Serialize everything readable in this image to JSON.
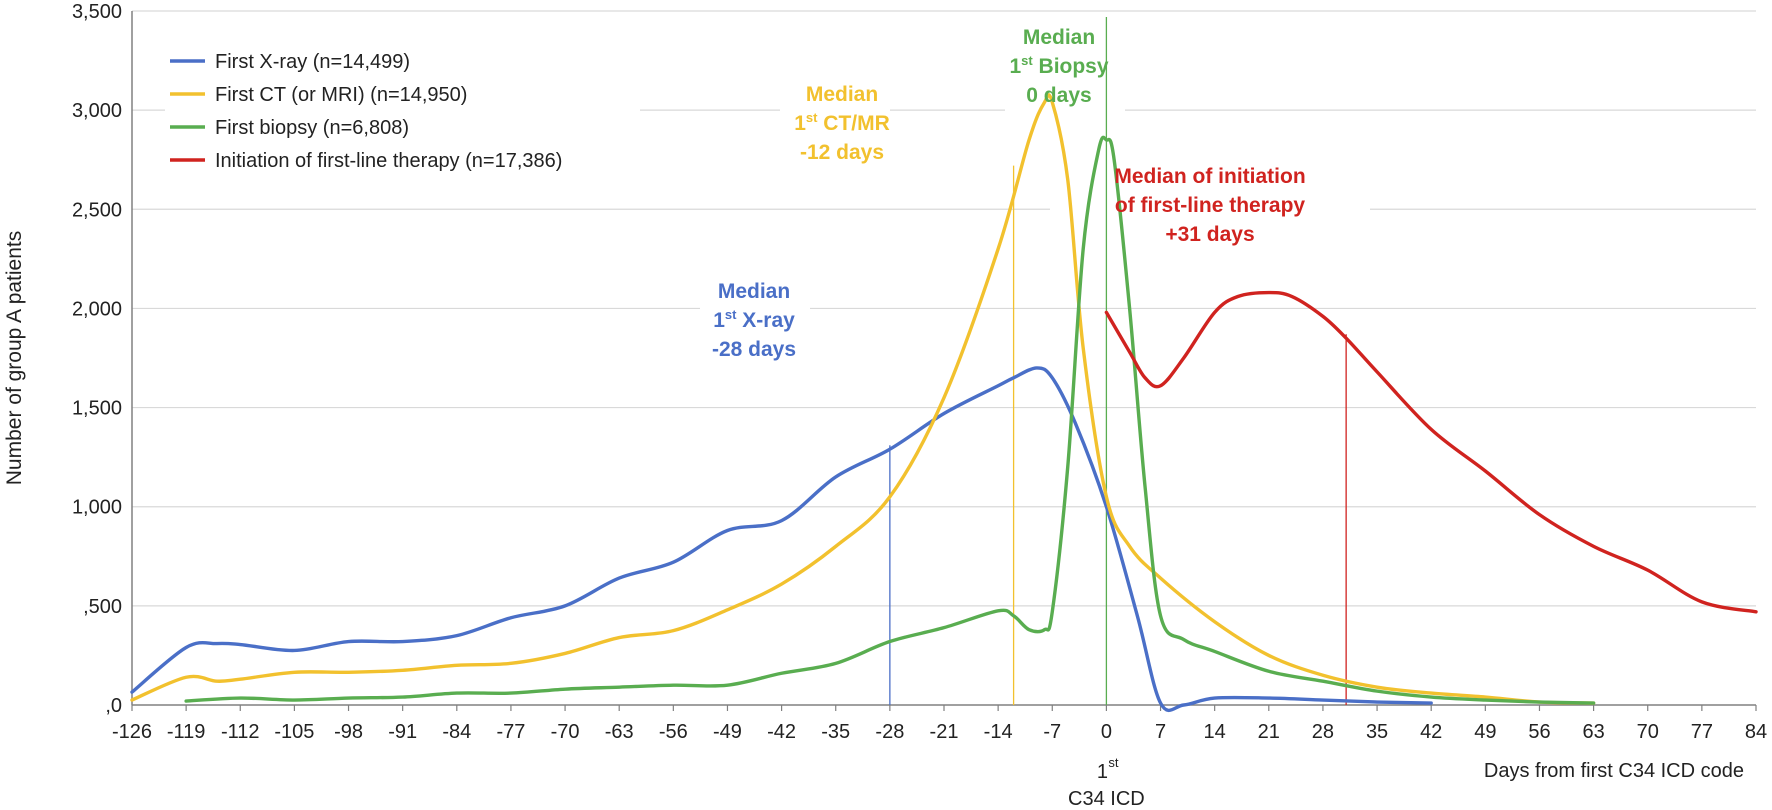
{
  "chart_data": {
    "type": "line",
    "title": "",
    "ylabel": "Number of group A patients",
    "xlabel": "Days from first C34 ICD code",
    "x_special_label": [
      "1",
      "st",
      "C34 ICD"
    ],
    "ylim": [
      0,
      3500
    ],
    "xlim": [
      -126,
      84
    ],
    "yticks": [
      0,
      500,
      1000,
      1500,
      2000,
      2500,
      3000,
      3500
    ],
    "ytick_labels": [
      ",000",
      ",500",
      "1,000",
      "1,500",
      "2,000",
      "2,500",
      "3,000",
      "3,500"
    ],
    "ytick_labels_shown": [
      ",0",
      ",500",
      "1,000",
      "1,500",
      "2,000",
      "2,500",
      "3,000",
      "3,500"
    ],
    "xticks": [
      -126,
      -119,
      -112,
      -105,
      -98,
      -91,
      -84,
      -77,
      -70,
      -63,
      -56,
      -49,
      -42,
      -35,
      -28,
      -21,
      -14,
      -7,
      0,
      7,
      14,
      21,
      28,
      35,
      42,
      49,
      56,
      63,
      70,
      77,
      84
    ],
    "grid": true,
    "legend_position": "top-left",
    "series": [
      {
        "name": "First X-ray (n=14,499)",
        "color": "#4a6fc7",
        "x": [
          -126,
          -119,
          -115,
          -112,
          -105,
          -98,
          -91,
          -84,
          -77,
          -70,
          -63,
          -56,
          -49,
          -42,
          -35,
          -28,
          -21,
          -14,
          -12,
          -9,
          -7,
          -4,
          0,
          4,
          7,
          10,
          14,
          21,
          28,
          35,
          42
        ],
        "values": [
          65,
          290,
          310,
          305,
          275,
          320,
          320,
          350,
          440,
          500,
          640,
          720,
          880,
          930,
          1150,
          1290,
          1470,
          1610,
          1650,
          1700,
          1650,
          1420,
          1000,
          450,
          10,
          0,
          35,
          35,
          25,
          15,
          10
        ]
      },
      {
        "name": "First CT (or MRI) (n=14,950)",
        "color": "#f2c12e",
        "x": [
          -126,
          -119,
          -115,
          -112,
          -105,
          -98,
          -91,
          -84,
          -77,
          -70,
          -63,
          -56,
          -49,
          -42,
          -35,
          -28,
          -21,
          -14,
          -10,
          -8,
          -7,
          -5,
          -3,
          0,
          3,
          7,
          14,
          21,
          28,
          35,
          42,
          49,
          56,
          63
        ],
        "values": [
          25,
          140,
          120,
          130,
          165,
          165,
          175,
          200,
          210,
          260,
          340,
          375,
          480,
          610,
          800,
          1050,
          1550,
          2300,
          2850,
          3040,
          3040,
          2650,
          1800,
          1050,
          800,
          640,
          420,
          250,
          150,
          90,
          60,
          40,
          15,
          10
        ]
      },
      {
        "name": "First biopsy (n=6,808)",
        "color": "#59ad50",
        "x": [
          -119,
          -112,
          -105,
          -98,
          -91,
          -84,
          -77,
          -70,
          -63,
          -56,
          -49,
          -42,
          -35,
          -28,
          -21,
          -14,
          -12,
          -10,
          -8,
          -7,
          -5,
          -3,
          -1,
          0,
          1,
          3,
          5,
          7,
          10,
          14,
          21,
          28,
          35,
          42,
          49,
          56,
          63
        ],
        "values": [
          20,
          35,
          25,
          35,
          40,
          60,
          60,
          80,
          90,
          100,
          100,
          160,
          210,
          320,
          390,
          475,
          450,
          380,
          380,
          470,
          1200,
          2300,
          2800,
          2850,
          2750,
          2000,
          1100,
          450,
          330,
          270,
          170,
          120,
          70,
          40,
          25,
          15,
          10
        ]
      },
      {
        "name": "Initiation of first-line therapy (n=17,386)",
        "color": "#d0231f",
        "x": [
          0,
          3,
          5,
          7,
          10,
          14,
          17,
          21,
          24,
          28,
          31,
          35,
          42,
          49,
          56,
          63,
          70,
          77,
          84
        ],
        "values": [
          1980,
          1780,
          1650,
          1610,
          1750,
          1980,
          2060,
          2080,
          2060,
          1960,
          1850,
          1680,
          1390,
          1180,
          960,
          800,
          680,
          520,
          470
        ]
      }
    ],
    "median_lines": [
      {
        "x": -28,
        "top": 1310,
        "color": "#4a6fc7"
      },
      {
        "x": -12,
        "top": 2720,
        "color": "#f2c12e"
      },
      {
        "x": 0,
        "top": 3470,
        "color": "#59ad50"
      },
      {
        "x": 31,
        "top": 1870,
        "color": "#d0231f"
      }
    ],
    "annotations": [
      {
        "color": "#4a6fc7",
        "lines": [
          "Median",
          "1",
          "st",
          " X-ray",
          "-28 days"
        ]
      },
      {
        "color": "#f2c12e",
        "lines": [
          "Median",
          "1",
          "st",
          " CT/MR",
          "-12 days"
        ]
      },
      {
        "color": "#59ad50",
        "lines": [
          "Median",
          "1",
          "st",
          " Biopsy",
          "0 days"
        ]
      },
      {
        "color": "#d0231f",
        "lines": [
          "Median of initiation",
          "of first-line therapy",
          "+31 days"
        ]
      }
    ]
  }
}
